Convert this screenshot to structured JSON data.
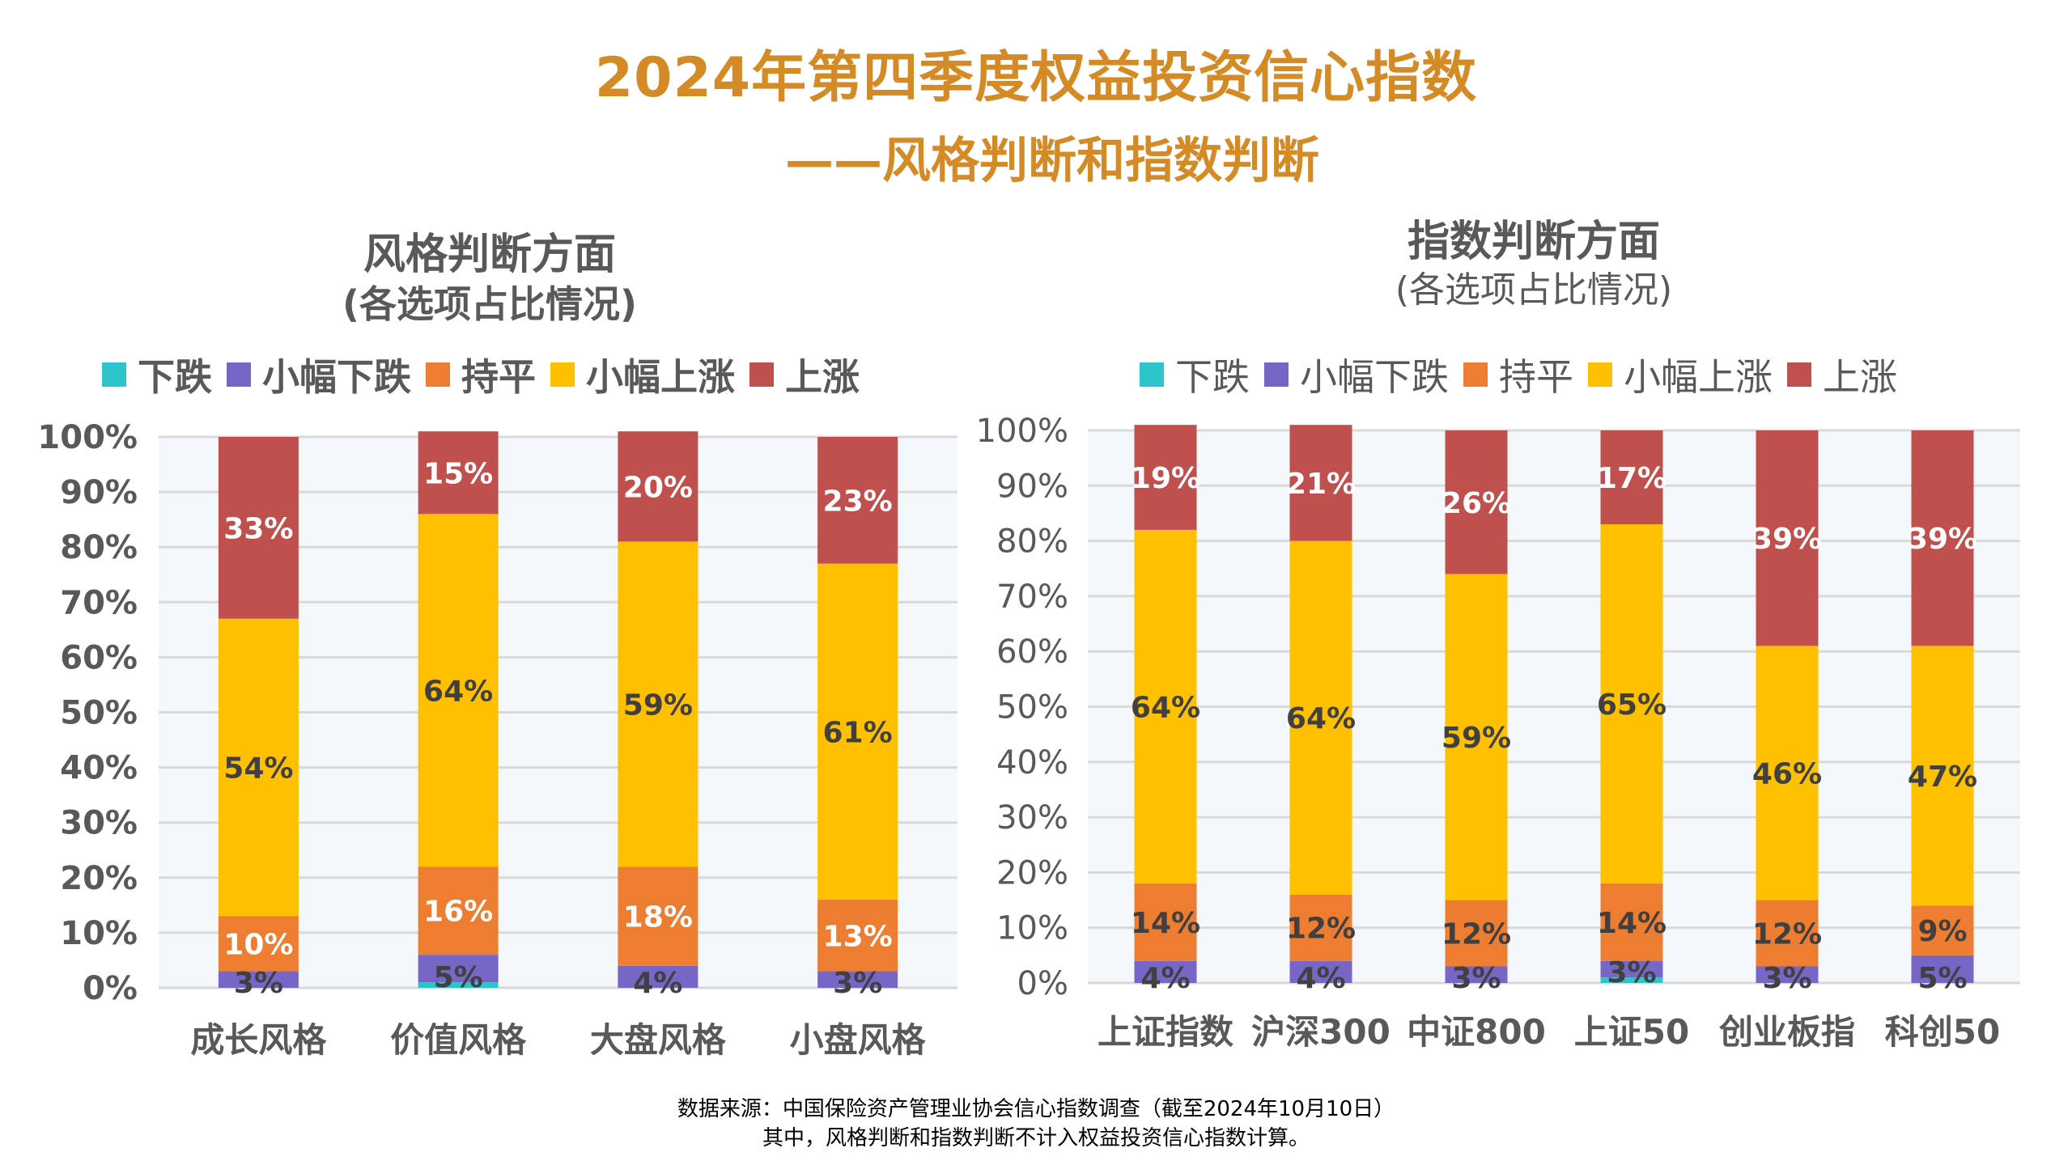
{
  "header": {
    "title": "2024年第四季度权益投资信心指数",
    "subtitle": "——风格判断和指数判断"
  },
  "colors": {
    "title": "#D48B25",
    "下跌": "#2EC4CC",
    "小幅下跌": "#7766C6",
    "持平": "#ED7D31",
    "小幅上涨": "#FFC000",
    "上涨": "#C0504D",
    "plot_bg": "#F5F8FB",
    "grid": "#D9D9D9",
    "text": "#595959"
  },
  "legend": [
    "下跌",
    "小幅下跌",
    "持平",
    "小幅上涨",
    "上涨"
  ],
  "footnote": {
    "line1": "数据来源：中国保险资产管理业协会信心指数调查（截至2024年10月10日）",
    "line2": "其中，风格判断和指数判断不计入权益投资信心指数计算。"
  },
  "chart_data": [
    {
      "type": "bar",
      "stacked": true,
      "title": "风格判断方面",
      "subtitle": "(各选项占比情况)",
      "xlabel": "",
      "ylabel": "",
      "ylim": [
        0,
        100
      ],
      "yticks": [
        "0%",
        "10%",
        "20%",
        "30%",
        "40%",
        "50%",
        "60%",
        "70%",
        "80%",
        "90%",
        "100%"
      ],
      "grid": true,
      "legend_position": "top",
      "categories": [
        "成长风格",
        "价值风格",
        "大盘风格",
        "小盘风格"
      ],
      "series": [
        {
          "name": "下跌",
          "values": [
            0,
            1,
            0,
            0
          ],
          "labels": [
            "",
            "",
            "",
            ""
          ]
        },
        {
          "name": "小幅下跌",
          "values": [
            3,
            5,
            4,
            3
          ],
          "labels": [
            "3%",
            "5%",
            "4%",
            "3%"
          ]
        },
        {
          "name": "持平",
          "values": [
            10,
            16,
            18,
            13
          ],
          "labels": [
            "10%",
            "16%",
            "18%",
            "13%"
          ]
        },
        {
          "name": "小幅上涨",
          "values": [
            54,
            64,
            59,
            61
          ],
          "labels": [
            "54%",
            "64%",
            "59%",
            "61%"
          ]
        },
        {
          "name": "上涨",
          "values": [
            33,
            15,
            20,
            23
          ],
          "labels": [
            "33%",
            "15%",
            "20%",
            "23%"
          ]
        }
      ]
    },
    {
      "type": "bar",
      "stacked": true,
      "title": "指数判断方面",
      "subtitle": "(各选项占比情况)",
      "xlabel": "",
      "ylabel": "",
      "ylim": [
        0,
        100
      ],
      "yticks": [
        "0%",
        "10%",
        "20%",
        "30%",
        "40%",
        "50%",
        "60%",
        "70%",
        "80%",
        "90%",
        "100%"
      ],
      "grid": true,
      "legend_position": "top",
      "categories": [
        "上证指数",
        "沪深300",
        "中证800",
        "上证50",
        "创业板指",
        "科创50"
      ],
      "series": [
        {
          "name": "下跌",
          "values": [
            0,
            0,
            0,
            1,
            0,
            0
          ],
          "labels": [
            "",
            "",
            "",
            "",
            "",
            ""
          ]
        },
        {
          "name": "小幅下跌",
          "values": [
            4,
            4,
            3,
            3,
            3,
            5
          ],
          "labels": [
            "4%",
            "4%",
            "3%",
            "3%",
            "3%",
            "5%"
          ]
        },
        {
          "name": "持平",
          "values": [
            14,
            12,
            12,
            14,
            12,
            9
          ],
          "labels": [
            "14%",
            "12%",
            "12%",
            "14%",
            "12%",
            "9%"
          ]
        },
        {
          "name": "小幅上涨",
          "values": [
            64,
            64,
            59,
            65,
            46,
            47
          ],
          "labels": [
            "64%",
            "64%",
            "59%",
            "65%",
            "46%",
            "47%"
          ]
        },
        {
          "name": "上涨",
          "values": [
            19,
            21,
            26,
            17,
            39,
            39
          ],
          "labels": [
            "19%",
            "21%",
            "26%",
            "17%",
            "39%",
            "39%"
          ]
        }
      ]
    }
  ]
}
